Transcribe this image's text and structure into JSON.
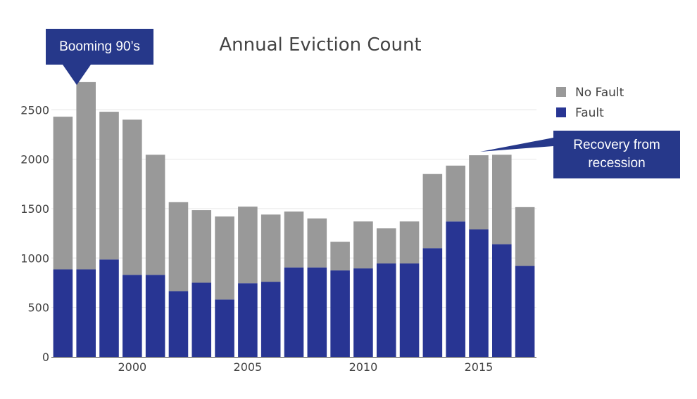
{
  "chart_data": {
    "type": "bar",
    "stacked": true,
    "title": "Annual Eviction Count",
    "xlabel": "",
    "ylabel": "",
    "x": [
      1997,
      1998,
      1999,
      2000,
      2001,
      2002,
      2003,
      2004,
      2005,
      2006,
      2007,
      2008,
      2009,
      2010,
      2011,
      2012,
      2013,
      2014,
      2015,
      2016,
      2017
    ],
    "x_ticks": [
      "2000",
      "2005",
      "2010",
      "2015"
    ],
    "y_ticks": [
      "0",
      "500",
      "1000",
      "1500",
      "2000",
      "2500"
    ],
    "ylim": [
      0,
      2900
    ],
    "xlim": [
      1996.5,
      2017.5
    ],
    "grid": "horizontal",
    "legend_position": "top-right",
    "series": [
      {
        "name": "Fault",
        "color": "#283593",
        "values": [
          885,
          885,
          985,
          830,
          830,
          665,
          750,
          580,
          745,
          760,
          905,
          905,
          875,
          895,
          945,
          945,
          1100,
          1370,
          1290,
          1140,
          920
        ]
      },
      {
        "name": "No Fault",
        "color": "#999999",
        "values": [
          1545,
          1895,
          1495,
          1570,
          1215,
          900,
          735,
          840,
          775,
          680,
          565,
          495,
          290,
          475,
          355,
          425,
          750,
          565,
          750,
          905,
          595
        ]
      }
    ],
    "legend": [
      "No Fault",
      "Fault"
    ],
    "annotations": [
      {
        "text": "Booming 90’s",
        "points_to": 1998
      },
      {
        "text": "Recovery from recession",
        "points_to": 2015
      }
    ]
  },
  "annotations": {
    "booming": "Booming 90’s",
    "recovery_line1": "Recovery from",
    "recovery_line2": "recession"
  },
  "colors": {
    "annotation_bg": "#26388a",
    "fault": "#283593",
    "no_fault": "#999999",
    "grid": "#e6e6e6"
  }
}
